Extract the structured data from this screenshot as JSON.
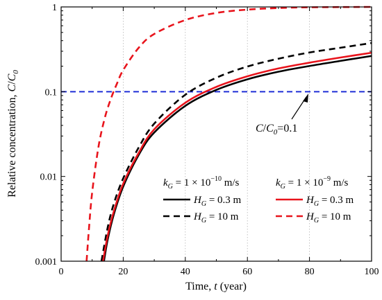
{
  "chart_data": {
    "type": "line",
    "xlabel": "Time, t (year)",
    "ylabel": "Relative concentration, C/C0",
    "xlim": [
      0,
      100
    ],
    "ylim": [
      0.001,
      1
    ],
    "y_scale": "log",
    "x_ticks": [
      0,
      20,
      40,
      60,
      80,
      100
    ],
    "y_ticks": [
      {
        "value": 0.001,
        "label": "0.001"
      },
      {
        "value": 0.01,
        "label": "0.01"
      },
      {
        "value": 0.1,
        "label": "0.1"
      },
      {
        "value": 1,
        "label": "1"
      }
    ],
    "grid": "vertical dotted",
    "legend_location": "lower-right",
    "series": [
      {
        "name": "H_G = 0.3 m",
        "group": "k_G = 1 × 10^-10 m/s",
        "color": "#000000",
        "dash": "solid",
        "x": [
          13.8,
          15,
          17,
          20,
          25,
          30,
          40,
          50,
          60,
          70,
          80,
          90,
          100
        ],
        "y": [
          0.001,
          0.0018,
          0.0036,
          0.0076,
          0.018,
          0.033,
          0.068,
          0.105,
          0.14,
          0.172,
          0.201,
          0.231,
          0.264
        ]
      },
      {
        "name": "H_G = 10 m",
        "group": "k_G = 1 × 10^-10 m/s",
        "color": "#000000",
        "dash": "dashed",
        "x": [
          13.0,
          15,
          17,
          20,
          25,
          30,
          40,
          50,
          60,
          70,
          80,
          90,
          100
        ],
        "y": [
          0.001,
          0.0025,
          0.0048,
          0.0095,
          0.022,
          0.042,
          0.092,
          0.146,
          0.198,
          0.245,
          0.29,
          0.33,
          0.375
        ]
      },
      {
        "name": "H_G = 0.3 m",
        "group": "k_G = 1 × 10^-9 m/s",
        "color": "#e8141c",
        "dash": "solid",
        "x": [
          13.5,
          15,
          17,
          20,
          25,
          30,
          40,
          50,
          60,
          70,
          80,
          90,
          100
        ],
        "y": [
          0.001,
          0.002,
          0.0039,
          0.0082,
          0.019,
          0.036,
          0.074,
          0.114,
          0.152,
          0.188,
          0.22,
          0.253,
          0.288
        ]
      },
      {
        "name": "H_G = 10 m",
        "group": "k_G = 1 × 10^-9 m/s",
        "color": "#e8141c",
        "dash": "dashed",
        "x": [
          8.2,
          9,
          10,
          12,
          14,
          16,
          18,
          20,
          25,
          30,
          40,
          50,
          60,
          70,
          80,
          100
        ],
        "y": [
          0.001,
          0.0025,
          0.0065,
          0.022,
          0.048,
          0.082,
          0.125,
          0.18,
          0.33,
          0.48,
          0.7,
          0.85,
          0.93,
          0.97,
          0.99,
          1.0
        ]
      }
    ],
    "reference_line": {
      "y": 0.1,
      "color": "#1f2fd6",
      "dash": "dashed"
    },
    "annotation": {
      "text": "C/C0 = 0.1",
      "arrow_x": 80,
      "arrow_y": 0.1
    }
  }
}
